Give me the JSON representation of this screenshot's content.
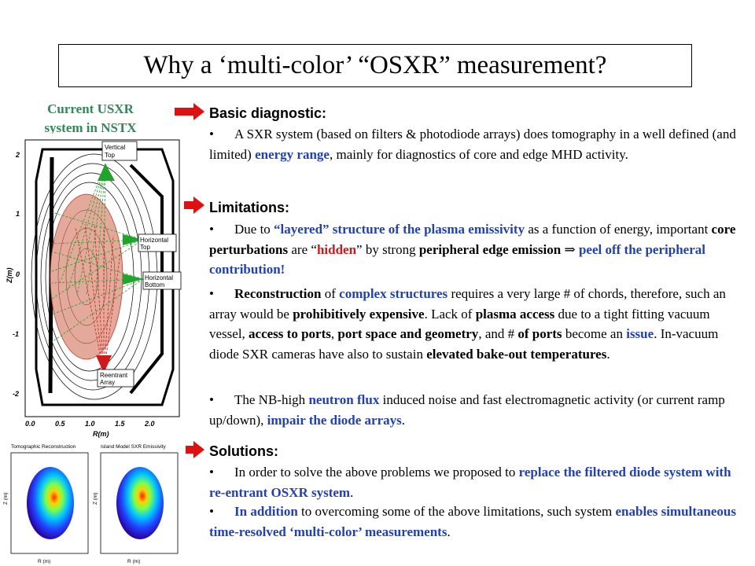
{
  "title": "Why a ‘multi-color’ “OSXR” measurement?",
  "caption": [
    "Current USXR",
    "system in NSTX"
  ],
  "sections": {
    "basic": {
      "heading": "Basic diagnostic:",
      "p1": [
        "A SXR system (based on filters & photodiode arrays) does tomography in a well defined (and limited) ",
        "energy range",
        ", mainly for diagnostics of core and edge MHD activity."
      ]
    },
    "limitations": {
      "heading": "Limitations:",
      "p1": [
        "Due to ",
        "“layered” structure of the plasma emissivity",
        " as a function of energy, important ",
        "core perturbations",
        " are “",
        "hidden",
        "” by strong ",
        "peripheral edge emission",
        " ⇒ ",
        "peel off the peripheral contribution!"
      ],
      "p2": [
        "Reconstruction",
        " of ",
        "complex structures",
        " requires a very large # of chords, therefore, such an array would be ",
        "prohibitively expensive",
        ". Lack of ",
        "plasma access",
        " due to a tight fitting vacuum vessel, ",
        "access to ports",
        ", ",
        "port space and geometry",
        ", and # ",
        "of ports",
        " become an ",
        "issue",
        ". In-vacuum diode SXR cameras have also to sustain ",
        "elevated bake-out temperatures",
        "."
      ],
      "p3": [
        "The NB-high ",
        "neutron flux",
        " induced noise and fast electromagnetic activity (or current ramp up/down), ",
        "impair the diode arrays",
        "."
      ]
    },
    "solutions": {
      "heading": "Solutions:",
      "p1": [
        "In order to solve the above problems we proposed to ",
        "replace the filtered diode system with re-entrant OSXR system",
        "."
      ],
      "p2": [
        "In addition",
        " to overcoming some of the above limitations, such system ",
        "enables simultaneous time-resolved ‘multi-color’ measurements",
        "."
      ]
    }
  },
  "figure": {
    "labels": [
      "Vertical Top",
      "Horizontal Top",
      "Horizontal Bottom",
      "Reentrant Array"
    ],
    "label_lines": {
      "vt": [
        "Vertical",
        "Top"
      ],
      "ht": [
        "Horizontal",
        "Top"
      ],
      "hb": [
        "Horizontal",
        "Bottom"
      ],
      "ra": [
        "Reentrant",
        "Array"
      ]
    },
    "y_axis": "Z(m)",
    "x_axis": "R(m)",
    "x_ticks": [
      "0.0",
      "0.5",
      "1.0",
      "1.5",
      "2.0"
    ],
    "y_ticks": [
      "2",
      "1",
      "0",
      "-1",
      "-2"
    ]
  },
  "mini_plots": [
    {
      "title": "Tomographic Reconstruction",
      "xlabel": "R (m)",
      "ylabel": "Z (m)"
    },
    {
      "title": "Island Model SXR Emissivity",
      "xlabel": "R (m)",
      "ylabel": "Z (m)"
    }
  ],
  "colors": {
    "accent_blue": "#1f3fbf",
    "accent_red": "#d11919",
    "caption_green": "#2e8b57",
    "arrow_red": "#e01010"
  }
}
